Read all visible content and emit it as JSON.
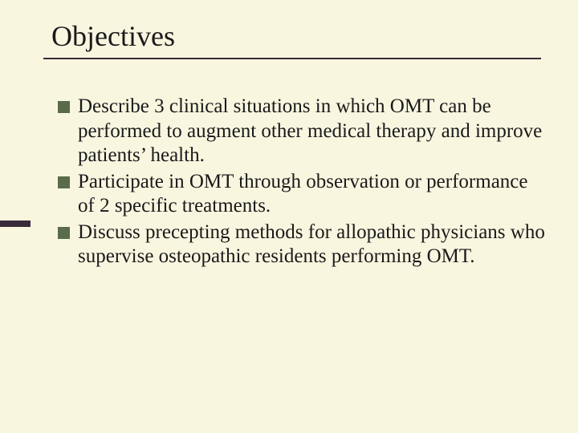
{
  "slide": {
    "background_color": "#f9f6e0",
    "title": "Objectives",
    "title_color": "#1a1a1a",
    "title_fontsize": 36,
    "underline_color": "#3a2a3a",
    "bullet_color": "#5a6b4a",
    "text_color": "#1a1a1a",
    "text_fontsize": 25,
    "sidebar_color": "#3a2a3a",
    "bullets": [
      "Describe 3 clinical situations in which OMT can be performed to augment other medical therapy and improve patients’ health.",
      "Participate in OMT through observation or performance of 2 specific treatments.",
      "Discuss precepting methods for allopathic physicians who supervise osteopathic residents performing OMT."
    ]
  }
}
